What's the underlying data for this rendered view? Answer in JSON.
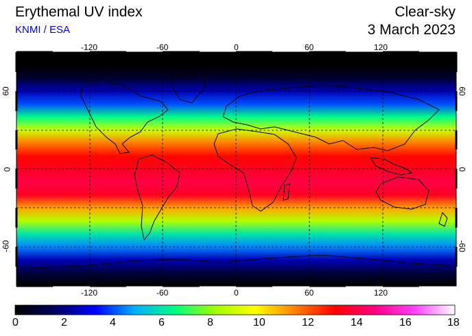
{
  "header": {
    "title": "Erythemal UV index",
    "source": "KNMI / ESA",
    "mode": "Clear-sky",
    "date": "3 March 2023"
  },
  "map": {
    "projection": "equirectangular",
    "lon_range": [
      -180,
      180
    ],
    "lat_range": [
      -90,
      90
    ],
    "lon_ticks": [
      "-120",
      "-60",
      "0",
      "60",
      "120"
    ],
    "lat_ticks": [
      "60",
      "0",
      "-60"
    ],
    "gridlines": "dashed",
    "continent_outlines": true
  },
  "colorbar": {
    "labels": [
      "0",
      "2",
      "4",
      "6",
      "8",
      "10",
      "12",
      "14",
      "16",
      "18"
    ],
    "colors": [
      "#000000",
      "#000060",
      "#0000ff",
      "#00b0ff",
      "#00ff80",
      "#a0ff00",
      "#ffff00",
      "#ff8000",
      "#ff0000",
      "#ff0080",
      "#ff40ff",
      "#ffffff"
    ]
  },
  "uv_profile": {
    "latitudes": [
      90,
      80,
      70,
      60,
      50,
      40,
      30,
      20,
      10,
      0,
      -10,
      -20,
      -30,
      -40,
      -50,
      -60,
      -70,
      -80,
      -90
    ],
    "values": [
      0,
      0,
      0.8,
      2.5,
      4.0,
      6.5,
      9.0,
      11.5,
      13.0,
      13.5,
      14.0,
      13.5,
      11.0,
      8.5,
      6.0,
      4.5,
      2.5,
      1.0,
      0
    ]
  }
}
